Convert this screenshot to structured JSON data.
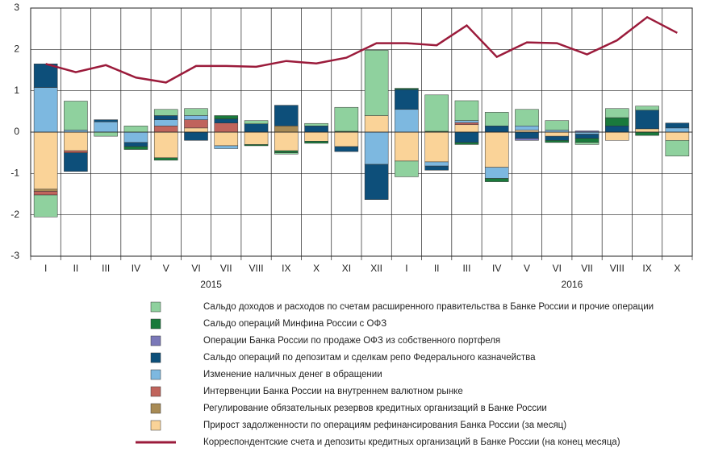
{
  "chart_data": {
    "type": "bar",
    "categories": [
      "I",
      "II",
      "III",
      "IV",
      "V",
      "VI",
      "VII",
      "VIII",
      "IX",
      "X",
      "XI",
      "XII",
      "I",
      "II",
      "III",
      "IV",
      "V",
      "VI",
      "VII",
      "VIII",
      "IX",
      "X"
    ],
    "year_labels": [
      "2015",
      "2016"
    ],
    "ylim": [
      -3,
      3
    ],
    "yticks": [
      -3,
      -2,
      -1,
      0,
      1,
      2,
      3
    ],
    "grid": true,
    "stacked": true,
    "series": [
      {
        "name": "Сальдо доходов и расходов по счетам расширенного правительства в Банке России и прочие операции",
        "color": "#8fd19e",
        "values": [
          -0.53,
          0.7,
          -0.1,
          0.15,
          0.15,
          0.17,
          0,
          0.08,
          -0.03,
          0.06,
          0.58,
          1.58,
          -0.38,
          0.88,
          0.48,
          0.33,
          0.4,
          0.23,
          -0.05,
          0.22,
          0.1,
          -0.38
        ]
      },
      {
        "name": "Сальдо операций Минфина России с ОФЗ",
        "color": "#1a7a3c",
        "values": [
          0,
          0,
          0,
          -0.07,
          -0.06,
          0,
          0.08,
          -0.03,
          -0.05,
          -0.05,
          0.02,
          0,
          0.03,
          0.02,
          -0.05,
          -0.08,
          0,
          -0.05,
          -0.1,
          0.2,
          -0.08,
          0
        ]
      },
      {
        "name": "Операции Банка России по продаже ОФЗ из собственного портфеля",
        "color": "#7a78b8",
        "values": [
          0,
          0,
          0,
          0,
          0,
          0,
          0,
          0,
          0,
          0,
          0,
          0,
          0,
          0,
          0,
          0,
          -0.05,
          0,
          0.03,
          0,
          0,
          0
        ]
      },
      {
        "name": "Сальдо операций по депозитам и сделкам репо Федерального казначейства",
        "color": "#0d4f7a",
        "values": [
          0.57,
          -0.45,
          0.05,
          -0.1,
          0.1,
          -0.2,
          0.1,
          0.2,
          0.5,
          0.15,
          -0.12,
          -0.85,
          0.48,
          -0.1,
          -0.25,
          0.15,
          -0.15,
          -0.1,
          -0.1,
          0.15,
          0.45,
          0.12
        ]
      },
      {
        "name": "Изменение наличных денег в обращении",
        "color": "#7db8e0",
        "values": [
          1.08,
          0.05,
          0.25,
          -0.25,
          0.15,
          0.1,
          -0.07,
          0,
          0,
          0,
          0,
          -0.78,
          0.55,
          -0.1,
          0.05,
          -0.27,
          0.1,
          0.05,
          -0.05,
          0,
          0,
          0.1
        ]
      },
      {
        "name": "Интервенции Банка России на внутреннем валютном рынке",
        "color": "#c0645c",
        "values": [
          -0.09,
          -0.05,
          0,
          0,
          0.15,
          0.2,
          0.22,
          0,
          0,
          0,
          0,
          0,
          0,
          0,
          0.05,
          0,
          0,
          0,
          0,
          0,
          0,
          0
        ]
      },
      {
        "name": "Регулирование обязательных резервов кредитных организаций в Банке России",
        "color": "#a88b55",
        "values": [
          -0.05,
          0,
          0,
          0,
          0,
          0,
          0,
          0,
          0.15,
          0,
          0,
          0,
          0,
          0,
          0,
          0,
          0,
          0,
          0,
          0,
          0,
          0
        ]
      },
      {
        "name": "Прирост задолженности по операциям рефинансирования Банка России (за месяц)",
        "color": "#fad398",
        "values": [
          -1.38,
          -0.45,
          0,
          0,
          -0.62,
          0.1,
          -0.33,
          -0.3,
          -0.45,
          -0.22,
          -0.35,
          0.4,
          -0.7,
          -0.72,
          0.18,
          -0.85,
          0.05,
          -0.1,
          0,
          -0.2,
          0.08,
          -0.2
        ]
      },
      {
        "name": "Корреспондентские счета и депозиты кредитных организаций в Банке России (на конец месяца)",
        "color": "#9b1b3b",
        "type": "line",
        "values": [
          1.65,
          1.45,
          1.62,
          1.32,
          1.2,
          1.6,
          1.6,
          1.58,
          1.72,
          1.66,
          1.8,
          2.15,
          2.15,
          2.1,
          2.58,
          1.82,
          2.17,
          2.15,
          1.88,
          2.22,
          2.78,
          2.4
        ]
      }
    ]
  }
}
